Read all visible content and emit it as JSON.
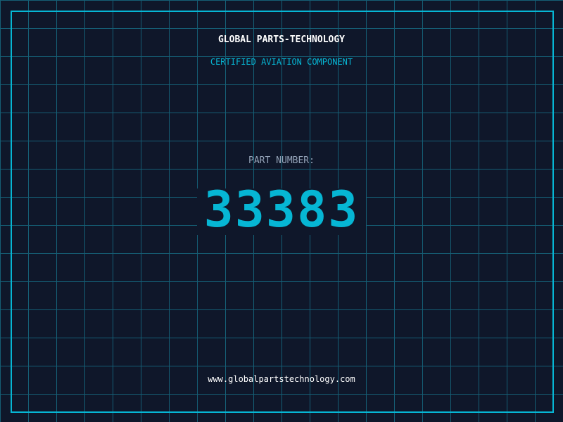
{
  "header": {
    "brand": "GLOBAL PARTS-TECHNOLOGY",
    "subtitle": "CERTIFIED AVIATION COMPONENT"
  },
  "main": {
    "label": "PART NUMBER:",
    "part_number": "33383"
  },
  "footer": {
    "url": "www.globalpartstechnology.com"
  },
  "colors": {
    "background": "#0f172a",
    "accent": "#06b6d4",
    "grid": "#155e75"
  }
}
